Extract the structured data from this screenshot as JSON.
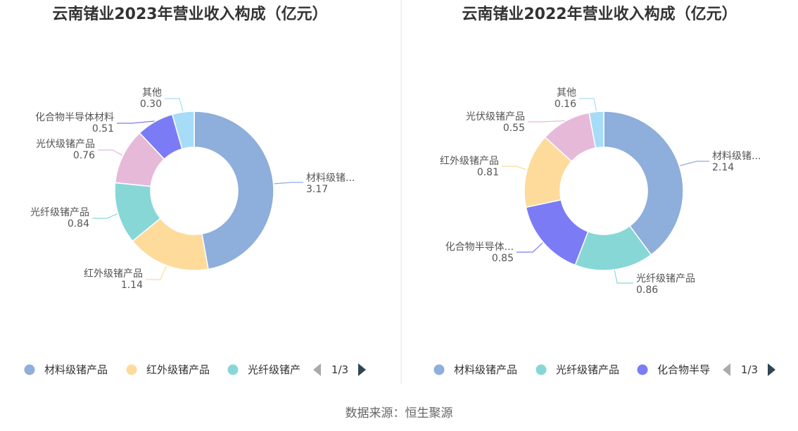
{
  "chart_data": [
    {
      "type": "pie",
      "title": "云南锗业2023年营业收入构成（亿元）",
      "series": [
        {
          "label": "材料级锗产品",
          "short": "材料级锗...",
          "value": 3.17,
          "value_text": "3.17",
          "color": "#8eaedb"
        },
        {
          "label": "红外级锗产品",
          "short": "红外级锗产品",
          "value": 1.14,
          "value_text": "1.14",
          "color": "#fedb9b"
        },
        {
          "label": "光纤级锗产品",
          "short": "光纤级锗产品",
          "value": 0.84,
          "value_text": "0.84",
          "color": "#87d7d7"
        },
        {
          "label": "光伏级锗产品",
          "short": "光伏级锗产品",
          "value": 0.76,
          "value_text": "0.76",
          "color": "#e6b9d9"
        },
        {
          "label": "化合物半导体材料",
          "short": "化合物半导体材料",
          "value": 0.51,
          "value_text": "0.51",
          "color": "#7b7cf5"
        },
        {
          "label": "其他",
          "short": "其他",
          "value": 0.3,
          "value_text": "0.30",
          "color": "#a6dcf7"
        }
      ],
      "legend": {
        "items": [
          "材料级锗产品",
          "红外级锗产品",
          "光纤级锗产"
        ],
        "colors": [
          "#8eaedb",
          "#fedb9b",
          "#87d7d7"
        ],
        "page": "1/3"
      }
    },
    {
      "type": "pie",
      "title": "云南锗业2022年营业收入构成（亿元）",
      "series": [
        {
          "label": "材料级锗产品",
          "short": "材料级锗...",
          "value": 2.14,
          "value_text": "2.14",
          "color": "#8eaedb"
        },
        {
          "label": "光纤级锗产品",
          "short": "光纤级锗产品",
          "value": 0.86,
          "value_text": "0.86",
          "color": "#87d7d7"
        },
        {
          "label": "化合物半导体材料",
          "short": "化合物半导体...",
          "value": 0.85,
          "value_text": "0.85",
          "color": "#7b7cf5"
        },
        {
          "label": "红外级锗产品",
          "short": "红外级锗产品",
          "value": 0.81,
          "value_text": "0.81",
          "color": "#fedb9b"
        },
        {
          "label": "光伏级锗产品",
          "short": "光伏级锗产品",
          "value": 0.55,
          "value_text": "0.55",
          "color": "#e6b9d9"
        },
        {
          "label": "其他",
          "short": "其他",
          "value": 0.16,
          "value_text": "0.16",
          "color": "#a6dcf7"
        }
      ],
      "legend": {
        "items": [
          "材料级锗产品",
          "光纤级锗产品",
          "化合物半导"
        ],
        "colors": [
          "#8eaedb",
          "#87d7d7",
          "#7b7cf5"
        ],
        "page": "1/3"
      }
    }
  ],
  "footer": "数据来源：恒生聚源"
}
